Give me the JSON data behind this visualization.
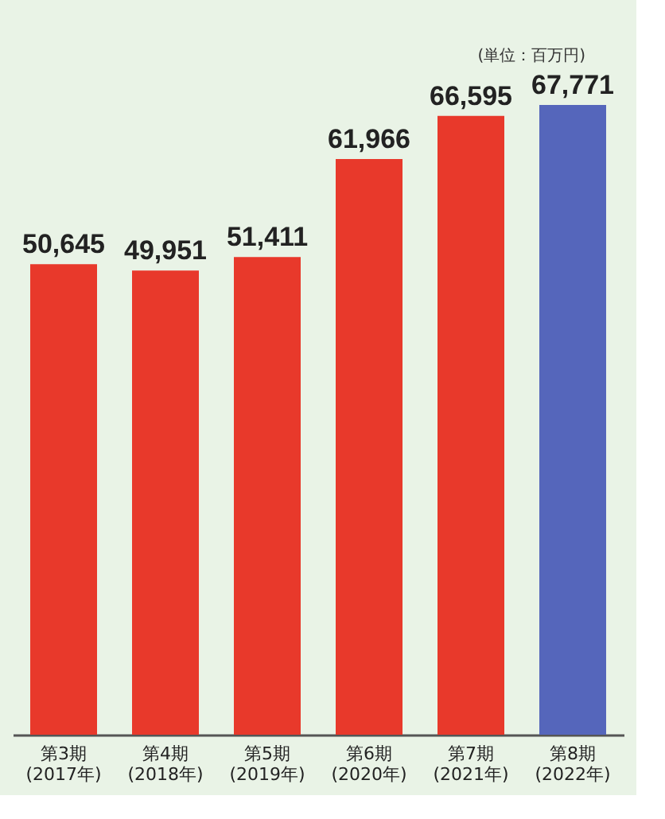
{
  "chart_data": {
    "type": "bar",
    "categories": [
      "第3期\n(2017年)",
      "第4期\n(2018年)",
      "第5期\n(2019年)",
      "第6期\n(2020年)",
      "第7期\n(2021年)",
      "第8期\n(2022年)"
    ],
    "values": [
      50645,
      49951,
      51411,
      61966,
      66595,
      67771
    ],
    "colors": [
      "#e8392b",
      "#e8392b",
      "#e8392b",
      "#e8392b",
      "#e8392b",
      "#5566bb"
    ],
    "value_labels": [
      "50,645",
      "49,951",
      "51,411",
      "61,966",
      "66,595",
      "67,771"
    ],
    "annotations": [
      "(単位：百万円)"
    ]
  }
}
